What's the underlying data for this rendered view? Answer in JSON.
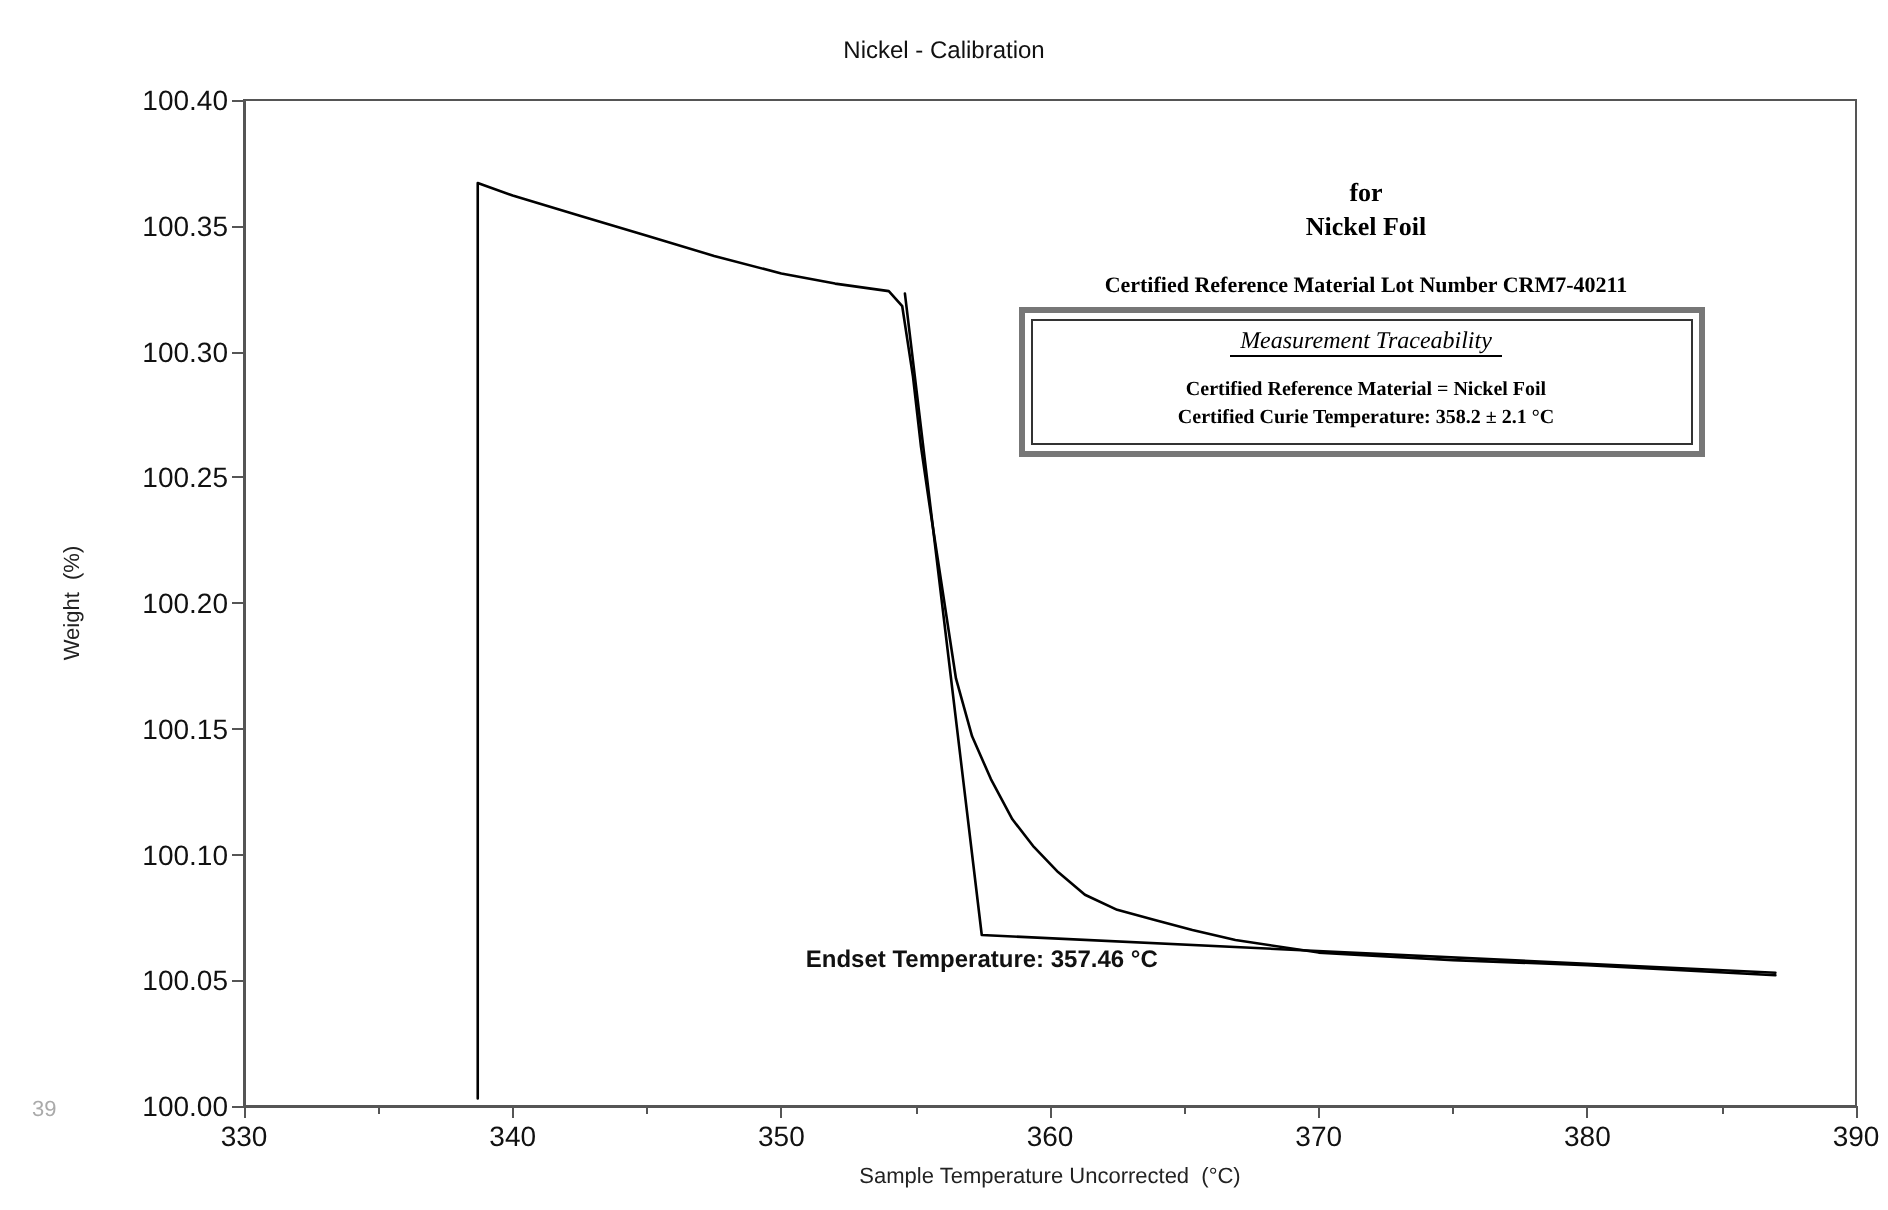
{
  "chart_data": {
    "type": "line",
    "title": "Nickel - Calibration",
    "xlabel": "Sample Temperature Uncorrected  (°C)",
    "ylabel": "Weight  (%)",
    "xlim": [
      330,
      390
    ],
    "xticks": [
      330,
      340,
      350,
      360,
      370,
      380,
      390
    ],
    "ylim": [
      100.0,
      100.4
    ],
    "yticks": [
      {
        "value": 100.0,
        "label": "100.00"
      },
      {
        "value": 100.05,
        "label": "100.05"
      },
      {
        "value": 100.1,
        "label": "100.10"
      },
      {
        "value": 100.15,
        "label": "100.15"
      },
      {
        "value": 100.2,
        "label": "100.20"
      },
      {
        "value": 100.25,
        "label": "100.25"
      },
      {
        "value": 100.3,
        "label": "100.30"
      },
      {
        "value": 100.35,
        "label": "100.35"
      },
      {
        "value": 100.4,
        "label": "100.40"
      }
    ],
    "grid": false,
    "marker": "none",
    "line_style": "solid",
    "series": [
      {
        "color": "#000000",
        "x": [
          338.7,
          338.7,
          340,
          342.5,
          345,
          347.5,
          350,
          352,
          354,
          354.5,
          354.9,
          355.2,
          355.5,
          355.9,
          356.5,
          357.1,
          357.8,
          358.6,
          359.4,
          360.3,
          361.3,
          362.5,
          363.9,
          365.3,
          366.9,
          370,
          375,
          380,
          387
        ],
        "values": [
          100.003,
          100.367,
          100.362,
          100.354,
          100.346,
          100.338,
          100.331,
          100.327,
          100.324,
          100.318,
          100.29,
          100.262,
          100.24,
          100.212,
          100.17,
          100.147,
          100.13,
          100.114,
          100.103,
          100.093,
          100.084,
          100.078,
          100.074,
          100.07,
          100.066,
          100.061,
          100.058,
          100.056,
          100.052
        ]
      },
      {
        "color": "#000000",
        "x": [
          354.6,
          357.46,
          387
        ],
        "values": [
          100.323,
          100.068,
          100.053
        ]
      }
    ],
    "annotations": [
      "for",
      "Nickel Foil",
      "Certified Reference Material Lot Number CRM7-40211",
      "Measurement Traceability",
      "Certified Reference Material = Nickel Foil",
      "Certified Curie Temperature: 358.2 ± 2.1 °C",
      {
        "text": "Endset Temperature: 357.46 °C",
        "x": 357.46,
        "y": 100.068
      },
      "39"
    ]
  }
}
